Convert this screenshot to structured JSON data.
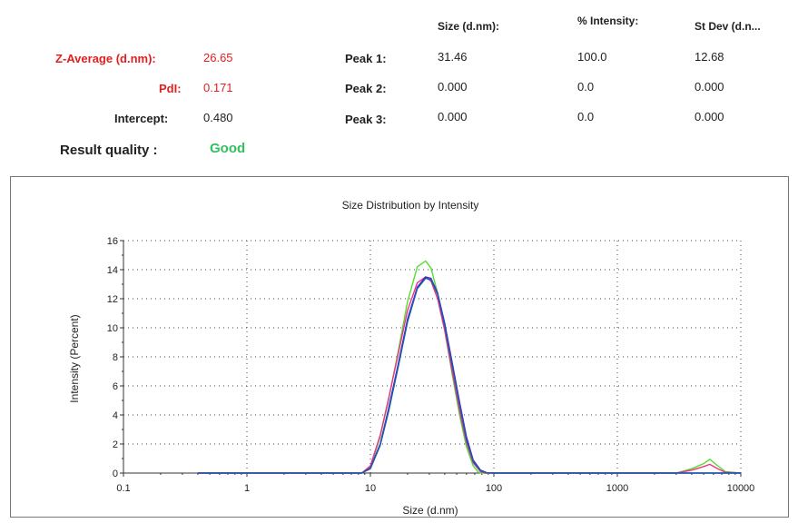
{
  "results": {
    "headers": {
      "size": "Size (d.nm):",
      "intensity": "% Intensity:",
      "stdev": "St Dev (d.n..."
    },
    "z_average": {
      "label": "Z-Average (d.nm):",
      "value": "26.65"
    },
    "pdi": {
      "label": "PdI:",
      "value": "0.171"
    },
    "intercept": {
      "label": "Intercept:",
      "value": "0.480"
    },
    "result_quality": {
      "label": "Result quality :",
      "value": "Good"
    },
    "peaks": [
      {
        "label": "Peak 1:",
        "size": "31.46",
        "intensity": "100.0",
        "stdev": "12.68"
      },
      {
        "label": "Peak 2:",
        "size": "0.000",
        "intensity": "0.0",
        "stdev": "0.000"
      },
      {
        "label": "Peak 3:",
        "size": "0.000",
        "intensity": "0.0",
        "stdev": "0.000"
      }
    ]
  },
  "chart_data": {
    "type": "line",
    "title": "Size Distribution by Intensity",
    "xlabel": "Size (d.nm)",
    "ylabel": "Intensity (Percent)",
    "x_scale": "log",
    "xlim": [
      0.1,
      10000
    ],
    "ylim": [
      0,
      16
    ],
    "x_ticks": [
      "0.1",
      "1",
      "10",
      "100",
      "1000",
      "10000"
    ],
    "y_ticks": [
      "0",
      "2",
      "4",
      "6",
      "8",
      "10",
      "12",
      "14",
      "16"
    ],
    "grid": true,
    "series": [
      {
        "color": "#55dd33",
        "x": [
          0.4,
          8.5,
          10,
          12,
          14,
          17,
          20,
          24,
          28,
          31,
          35,
          40,
          46,
          53,
          60,
          68,
          75,
          80,
          100,
          3000,
          4000,
          5000,
          5600,
          6500,
          7500,
          10000
        ],
        "y": [
          0,
          0,
          0.4,
          2.5,
          5.0,
          8.6,
          11.8,
          14.2,
          14.6,
          14.1,
          12.4,
          9.8,
          6.8,
          3.9,
          1.8,
          0.5,
          0.05,
          0,
          0,
          0,
          0.3,
          0.65,
          0.95,
          0.5,
          0.1,
          0
        ]
      },
      {
        "color": "#ee3388",
        "x": [
          0.4,
          8.5,
          10,
          12,
          14,
          17,
          20,
          24,
          28,
          31,
          35,
          40,
          46,
          53,
          60,
          68,
          78,
          85,
          100,
          3000,
          4000,
          5000,
          5600,
          6500,
          7500,
          10000
        ],
        "y": [
          0,
          0,
          0.5,
          2.6,
          5.1,
          8.4,
          11.2,
          13.1,
          13.5,
          13.2,
          12.0,
          9.8,
          7.0,
          4.2,
          2.1,
          0.7,
          0.1,
          0,
          0,
          0,
          0.2,
          0.45,
          0.6,
          0.3,
          0.05,
          0
        ]
      },
      {
        "color": "#4422cc",
        "x": [
          0.4,
          8.5,
          10,
          12,
          14,
          17,
          20,
          24,
          28,
          31,
          35,
          40,
          46,
          53,
          60,
          68,
          78,
          88,
          100,
          10000
        ],
        "y": [
          0,
          0,
          0.35,
          2.0,
          4.4,
          7.7,
          10.6,
          12.8,
          13.5,
          13.4,
          12.4,
          10.3,
          7.6,
          4.8,
          2.5,
          0.9,
          0.2,
          0.02,
          0,
          0
        ]
      },
      {
        "color": "#1a5fa8",
        "x": [
          0.4,
          8.5,
          10,
          12,
          14,
          17,
          20,
          24,
          28,
          31,
          35,
          40,
          46,
          53,
          60,
          68,
          78,
          88,
          100,
          10000
        ],
        "y": [
          0,
          0,
          0.3,
          1.9,
          4.2,
          7.5,
          10.4,
          12.7,
          13.4,
          13.3,
          12.3,
          10.1,
          7.4,
          4.6,
          2.3,
          0.8,
          0.15,
          0.01,
          0,
          0
        ]
      }
    ]
  }
}
